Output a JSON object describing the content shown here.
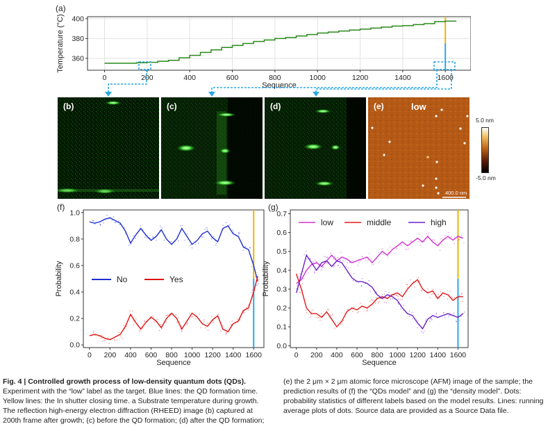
{
  "panels": {
    "a": {
      "tag": "(a)"
    },
    "b": {
      "tag": "(b)"
    },
    "c": {
      "tag": "(c)"
    },
    "d": {
      "tag": "(d)"
    },
    "e": {
      "tag": "(e)",
      "label": "low",
      "scale_bar": "400.0 nm",
      "cbar_max": "5.0 nm",
      "cbar_min": "-5.0 nm"
    },
    "f": {
      "tag": "(f)"
    },
    "g": {
      "tag": "(g)"
    }
  },
  "chart_data": [
    {
      "id": "a",
      "type": "line",
      "xlabel": "Sequence",
      "ylabel": "Temperature (°C)",
      "xlim": [
        -80,
        1720
      ],
      "ylim": [
        348,
        402
      ],
      "xticks": [
        0,
        200,
        400,
        600,
        800,
        1000,
        1200,
        1400,
        1600
      ],
      "yticks": [
        360,
        380,
        400
      ],
      "grid": true,
      "x": [
        0,
        50,
        100,
        150,
        200,
        250,
        300,
        350,
        400,
        450,
        500,
        550,
        600,
        650,
        700,
        750,
        800,
        850,
        900,
        950,
        1000,
        1050,
        1100,
        1150,
        1200,
        1250,
        1300,
        1350,
        1400,
        1450,
        1500,
        1550,
        1600,
        1650
      ],
      "y": [
        355,
        355,
        355,
        355.5,
        356,
        357,
        358,
        360.5,
        363,
        366,
        368.5,
        371,
        373,
        375,
        377,
        378.5,
        380,
        381,
        382.5,
        384,
        385.5,
        386.5,
        387.5,
        388.5,
        389.5,
        390.5,
        391.5,
        392.5,
        393,
        394,
        395,
        397,
        397.5,
        398
      ],
      "color": "#2a8a1a",
      "markers": {
        "qd_formation_blue_x": 1600,
        "shutter_close_yellow_x": 1600
      }
    },
    {
      "id": "f",
      "type": "line",
      "xlabel": "Sequence",
      "ylabel": "Probability",
      "xlim": [
        -60,
        1700
      ],
      "ylim": [
        -0.02,
        1.02
      ],
      "xticks": [
        0,
        200,
        400,
        600,
        800,
        1000,
        1200,
        1400,
        1600
      ],
      "yticks": [
        0.0,
        0.2,
        0.4,
        0.6,
        0.8,
        1.0
      ],
      "legend": "middle-left",
      "series": [
        {
          "name": "No",
          "color": "#1f2fd0",
          "x": [
            0,
            50,
            100,
            150,
            200,
            250,
            300,
            350,
            400,
            450,
            500,
            550,
            600,
            650,
            700,
            750,
            800,
            850,
            900,
            950,
            1000,
            1050,
            1100,
            1150,
            1200,
            1250,
            1300,
            1350,
            1400,
            1450,
            1500,
            1550,
            1600,
            1640
          ],
          "values": [
            0.93,
            0.92,
            0.93,
            0.95,
            0.96,
            0.94,
            0.92,
            0.86,
            0.77,
            0.83,
            0.88,
            0.83,
            0.79,
            0.82,
            0.87,
            0.8,
            0.76,
            0.8,
            0.88,
            0.82,
            0.76,
            0.79,
            0.84,
            0.86,
            0.81,
            0.78,
            0.88,
            0.9,
            0.84,
            0.82,
            0.74,
            0.72,
            0.6,
            0.48
          ]
        },
        {
          "name": "Yes",
          "color": "#e01010",
          "x": [
            0,
            50,
            100,
            150,
            200,
            250,
            300,
            350,
            400,
            450,
            500,
            550,
            600,
            650,
            700,
            750,
            800,
            850,
            900,
            950,
            1000,
            1050,
            1100,
            1150,
            1200,
            1250,
            1300,
            1350,
            1400,
            1450,
            1500,
            1550,
            1600,
            1640
          ],
          "values": [
            0.07,
            0.08,
            0.07,
            0.05,
            0.04,
            0.06,
            0.08,
            0.14,
            0.23,
            0.17,
            0.12,
            0.17,
            0.21,
            0.18,
            0.13,
            0.2,
            0.24,
            0.2,
            0.12,
            0.18,
            0.24,
            0.21,
            0.16,
            0.14,
            0.19,
            0.22,
            0.12,
            0.1,
            0.16,
            0.18,
            0.26,
            0.28,
            0.4,
            0.52
          ]
        }
      ],
      "markers": {
        "qd_formation_blue_x": 1600,
        "shutter_close_yellow_x": 1600
      }
    },
    {
      "id": "g",
      "type": "line",
      "xlabel": "Sequence",
      "ylabel": "Probability",
      "xlim": [
        -60,
        1700
      ],
      "ylim": [
        -0.01,
        0.72
      ],
      "xticks": [
        0,
        200,
        400,
        600,
        800,
        1000,
        1200,
        1400,
        1600
      ],
      "yticks": [
        0.0,
        0.1,
        0.2,
        0.3,
        0.4,
        0.5,
        0.6,
        0.7
      ],
      "legend": "top",
      "series": [
        {
          "name": "low",
          "color": "#d030d0",
          "x": [
            0,
            50,
            100,
            150,
            200,
            250,
            300,
            350,
            400,
            450,
            500,
            550,
            600,
            650,
            700,
            750,
            800,
            850,
            900,
            950,
            1000,
            1050,
            1100,
            1150,
            1200,
            1250,
            1300,
            1350,
            1400,
            1450,
            1500,
            1550,
            1600,
            1650
          ],
          "values": [
            0.33,
            0.35,
            0.4,
            0.43,
            0.44,
            0.42,
            0.45,
            0.48,
            0.45,
            0.47,
            0.46,
            0.44,
            0.45,
            0.46,
            0.47,
            0.44,
            0.47,
            0.5,
            0.48,
            0.51,
            0.53,
            0.55,
            0.53,
            0.55,
            0.57,
            0.55,
            0.58,
            0.55,
            0.53,
            0.56,
            0.58,
            0.56,
            0.58,
            0.57
          ]
        },
        {
          "name": "middle",
          "color": "#e01818",
          "x": [
            0,
            50,
            100,
            150,
            200,
            250,
            300,
            350,
            400,
            450,
            500,
            550,
            600,
            650,
            700,
            750,
            800,
            850,
            900,
            950,
            1000,
            1050,
            1100,
            1150,
            1200,
            1250,
            1300,
            1350,
            1400,
            1450,
            1500,
            1550,
            1600,
            1650
          ],
          "values": [
            0.38,
            0.3,
            0.2,
            0.17,
            0.17,
            0.15,
            0.18,
            0.14,
            0.1,
            0.13,
            0.18,
            0.2,
            0.19,
            0.21,
            0.2,
            0.22,
            0.25,
            0.26,
            0.25,
            0.27,
            0.28,
            0.26,
            0.3,
            0.33,
            0.35,
            0.3,
            0.28,
            0.29,
            0.25,
            0.28,
            0.27,
            0.24,
            0.26,
            0.26
          ]
        },
        {
          "name": "high",
          "color": "#6a20c8",
          "x": [
            0,
            50,
            100,
            150,
            200,
            250,
            300,
            350,
            400,
            450,
            500,
            550,
            600,
            650,
            700,
            750,
            800,
            850,
            900,
            950,
            1000,
            1050,
            1100,
            1150,
            1200,
            1250,
            1300,
            1350,
            1400,
            1450,
            1500,
            1550,
            1600,
            1650
          ],
          "values": [
            0.28,
            0.38,
            0.48,
            0.44,
            0.4,
            0.44,
            0.45,
            0.42,
            0.45,
            0.44,
            0.4,
            0.36,
            0.34,
            0.34,
            0.33,
            0.31,
            0.27,
            0.25,
            0.27,
            0.26,
            0.24,
            0.2,
            0.17,
            0.16,
            0.12,
            0.09,
            0.14,
            0.16,
            0.15,
            0.16,
            0.17,
            0.16,
            0.15,
            0.17
          ]
        }
      ],
      "markers": {
        "qd_formation_blue_x": 1600,
        "shutter_close_yellow_x": 1600
      }
    }
  ],
  "caption": {
    "title": "Fig. 4 | Controlled growth process of low-density quantum dots (QDs).",
    "col1_rest": "Experiment with the “low” label as the target. Blue lines: the QD formation time. Yellow lines: the In shutter closing time. a Substrate temperature during growth. The reflection high-energy electron diffraction (RHEED) image (b) captured at 200th frame after growth; (c) before the QD formation; (d) after the QD formation;",
    "col2": "(e) the 2 μm × 2 μm atomic force microscope (AFM) image of the sample; the prediction results of (f) the “QDs model” and (g) the “density model”. Dots: probability statistics of different labels based on the model results. Lines: running average plots of dots. Source data are provided as a Source Data file."
  }
}
